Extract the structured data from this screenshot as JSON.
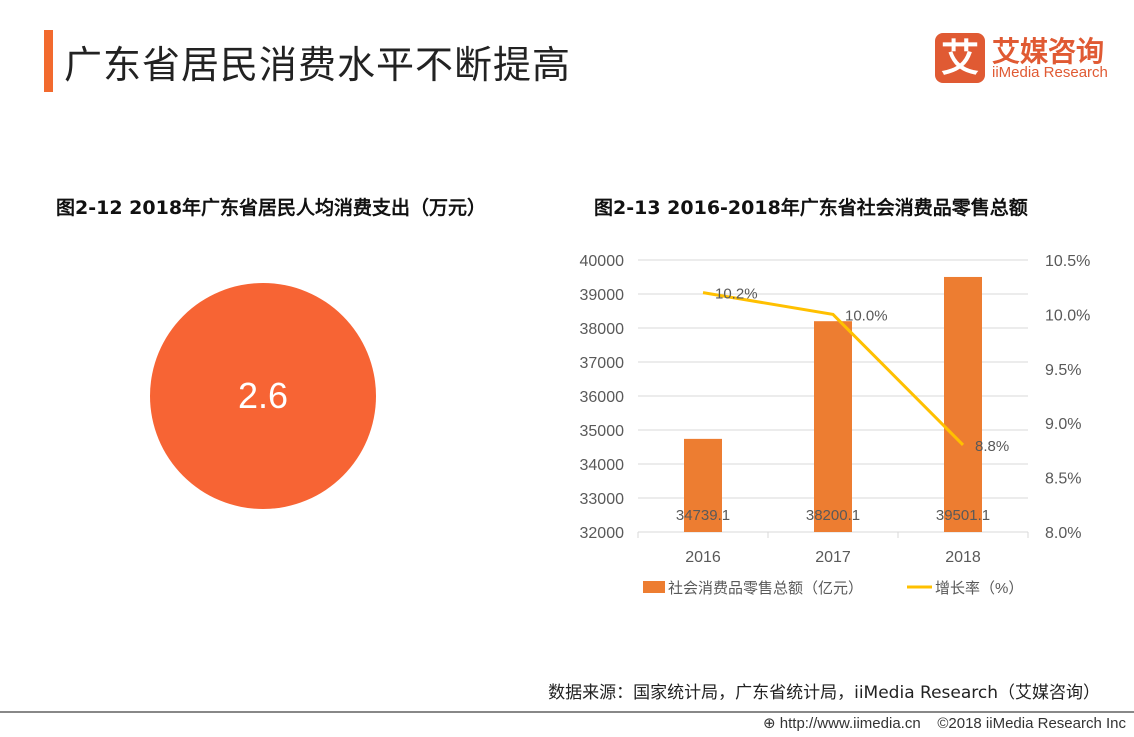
{
  "header": {
    "title": "广东省居民消费水平不断提高",
    "logo_mark": "艾",
    "logo_cn": "艾媒咨询",
    "logo_en": "iiMedia Research",
    "brand_color": "#e05a33"
  },
  "left": {
    "subtitle": "图2-12 2018年广东省居民人均消费支出（万元）",
    "value": "2.6",
    "color": "#f76434"
  },
  "chart_data": {
    "type": "bar+line",
    "title": "图2-13 2016-2018年广东省社会消费品零售总额",
    "categories": [
      "2016",
      "2017",
      "2018"
    ],
    "series": [
      {
        "name": "社会消费品零售总额（亿元）",
        "type": "bar",
        "axis": "left",
        "values": [
          34739.1,
          38200.1,
          39501.1
        ],
        "labels": [
          "34739.1",
          "38200.1",
          "39501.1"
        ],
        "color": "#ed7d31"
      },
      {
        "name": "增长率（%）",
        "type": "line",
        "axis": "right",
        "values": [
          10.2,
          10.0,
          8.8
        ],
        "labels": [
          "10.2%",
          "10.0%",
          "8.8%"
        ],
        "color": "#ffc000"
      }
    ],
    "ylim": [
      32000,
      40000
    ],
    "yticks": [
      "32000",
      "33000",
      "34000",
      "35000",
      "36000",
      "37000",
      "38000",
      "39000",
      "40000"
    ],
    "y2lim": [
      8.0,
      10.5
    ],
    "y2ticks": [
      "8.0%",
      "8.5%",
      "9.0%",
      "9.5%",
      "10.0%",
      "10.5%"
    ],
    "grid": true,
    "legend": "bottom"
  },
  "footer": {
    "source": "数据来源：国家统计局，广东省统计局，iiMedia Research（艾媒咨询）",
    "url": "http://www.iimedia.cn",
    "copyright": "©2018  iiMedia Research  Inc"
  }
}
